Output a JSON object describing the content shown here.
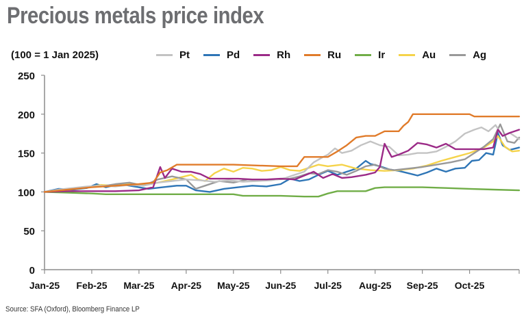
{
  "title": "Precious metals price index",
  "subtitle": "(100 = 1 Jan 2025)",
  "source": "Source: SFA (Oxford), Bloomberg Finance LP",
  "chart_data": {
    "type": "line",
    "title": "Precious metals price index",
    "subtitle": "(100 = 1 Jan 2025)",
    "xlabel": "",
    "ylabel": "",
    "ylim": [
      0,
      250
    ],
    "yticks": [
      0,
      50,
      100,
      150,
      200,
      250
    ],
    "xlim": [
      0,
      10.05
    ],
    "xticks": [
      0,
      1,
      2,
      3,
      4,
      5,
      6,
      7,
      8,
      9,
      10.05
    ],
    "xtick_labels": [
      "Jan-25",
      "Feb-25",
      "Mar-25",
      "Apr-25",
      "May-25",
      "Jun-25",
      "Jul-25",
      "Aug-25",
      "Sep-25",
      "Oct-25",
      ""
    ],
    "grid": false,
    "legend_position": "top",
    "series": [
      {
        "name": "Pt",
        "color": "#c3c3c3",
        "x": [
          0,
          0.3,
          0.6,
          0.9,
          1.2,
          1.5,
          1.8,
          2.1,
          2.4,
          2.7,
          3.0,
          3.3,
          3.6,
          3.9,
          4.2,
          4.5,
          4.8,
          5.1,
          5.3,
          5.5,
          5.7,
          5.9,
          6.0,
          6.15,
          6.3,
          6.5,
          6.7,
          6.9,
          7.1,
          7.3,
          7.5,
          7.7,
          7.9,
          8.1,
          8.3,
          8.5,
          8.7,
          8.9,
          9.1,
          9.25,
          9.4,
          9.55,
          9.7,
          9.85,
          10.05
        ],
        "y": [
          100,
          103,
          105,
          107,
          108,
          107,
          109,
          108,
          112,
          114,
          116,
          115,
          113,
          115,
          113,
          114,
          115,
          118,
          122,
          126,
          138,
          145,
          148,
          156,
          150,
          153,
          160,
          165,
          160,
          158,
          147,
          148,
          150,
          150,
          152,
          158,
          165,
          175,
          180,
          183,
          178,
          186,
          172,
          176,
          168
        ]
      },
      {
        "name": "Pd",
        "color": "#2e75b6",
        "x": [
          0,
          0.3,
          0.6,
          0.9,
          1.1,
          1.3,
          1.6,
          1.9,
          2.2,
          2.5,
          2.8,
          3.0,
          3.2,
          3.5,
          3.8,
          4.1,
          4.4,
          4.7,
          5.0,
          5.2,
          5.4,
          5.6,
          5.8,
          6.0,
          6.2,
          6.4,
          6.6,
          6.8,
          6.9,
          7.1,
          7.3,
          7.5,
          7.7,
          7.9,
          8.1,
          8.3,
          8.5,
          8.7,
          8.9,
          9.05,
          9.2,
          9.35,
          9.5,
          9.6,
          9.7,
          9.85,
          10.05
        ],
        "y": [
          100,
          104,
          103,
          105,
          110,
          106,
          110,
          107,
          104,
          106,
          108,
          108,
          102,
          100,
          104,
          106,
          108,
          107,
          110,
          117,
          114,
          116,
          122,
          127,
          122,
          126,
          130,
          140,
          136,
          133,
          129,
          127,
          124,
          121,
          125,
          130,
          126,
          130,
          131,
          140,
          141,
          150,
          148,
          176,
          160,
          154,
          157
        ]
      },
      {
        "name": "Rh",
        "color": "#9b2a87",
        "x": [
          0,
          0.5,
          1.0,
          1.5,
          2.0,
          2.3,
          2.45,
          2.55,
          2.7,
          2.9,
          3.1,
          3.3,
          3.5,
          3.8,
          4.1,
          4.4,
          4.7,
          5.0,
          5.3,
          5.5,
          5.7,
          5.9,
          6.1,
          6.3,
          6.5,
          6.8,
          7.0,
          7.1,
          7.2,
          7.35,
          7.5,
          7.7,
          7.9,
          8.1,
          8.3,
          8.5,
          8.7,
          8.9,
          9.1,
          9.3,
          9.5,
          9.6,
          9.7,
          9.85,
          10.05
        ],
        "y": [
          100,
          101,
          101,
          101,
          102,
          106,
          132,
          118,
          130,
          126,
          126,
          123,
          117,
          117,
          117,
          116,
          116,
          117,
          116,
          121,
          126,
          118,
          123,
          118,
          119,
          122,
          125,
          132,
          162,
          145,
          148,
          153,
          163,
          161,
          157,
          162,
          155,
          155,
          155,
          155,
          157,
          180,
          172,
          176,
          180
        ]
      },
      {
        "name": "Ru",
        "color": "#e07b2a",
        "x": [
          0,
          0.5,
          1.0,
          1.5,
          2.0,
          2.3,
          2.45,
          2.6,
          2.8,
          3.0,
          4.0,
          4.5,
          5.0,
          5.2,
          5.35,
          5.5,
          6.0,
          6.2,
          6.4,
          6.6,
          6.8,
          7.0,
          7.2,
          7.5,
          7.6,
          7.7,
          7.8,
          8.0,
          9.0,
          9.1,
          9.2,
          10.05
        ],
        "y": [
          100,
          103,
          106,
          108,
          110,
          112,
          125,
          128,
          135,
          135,
          135,
          134,
          133,
          133,
          133,
          145,
          145,
          152,
          160,
          170,
          172,
          172,
          178,
          178,
          185,
          190,
          200,
          200,
          200,
          197,
          197,
          197
        ]
      },
      {
        "name": "Ir",
        "color": "#70ad47",
        "x": [
          0,
          0.5,
          1.0,
          1.3,
          2.0,
          3.0,
          4.0,
          4.2,
          5.0,
          5.5,
          5.8,
          6.0,
          6.2,
          6.8,
          7.0,
          7.2,
          8.0,
          8.5,
          9.0,
          9.5,
          10.05
        ],
        "y": [
          100,
          99,
          98,
          97,
          97,
          97,
          97,
          95,
          95,
          94,
          94,
          98,
          101,
          101,
          105,
          106,
          106,
          105,
          104,
          103,
          102
        ]
      },
      {
        "name": "Au",
        "color": "#f5d34a",
        "x": [
          0,
          0.3,
          0.6,
          0.9,
          1.2,
          1.5,
          1.8,
          2.1,
          2.4,
          2.7,
          2.9,
          3.1,
          3.25,
          3.4,
          3.6,
          3.8,
          4.0,
          4.2,
          4.4,
          4.6,
          4.8,
          5.0,
          5.2,
          5.4,
          5.6,
          5.8,
          6.0,
          6.3,
          6.6,
          6.9,
          7.2,
          7.5,
          7.8,
          8.1,
          8.4,
          8.7,
          9.0,
          9.3,
          9.5,
          9.6,
          9.75,
          9.9,
          10.05
        ],
        "y": [
          100,
          102,
          104,
          106,
          109,
          108,
          110,
          109,
          112,
          116,
          119,
          122,
          116,
          114,
          124,
          130,
          126,
          131,
          130,
          127,
          128,
          132,
          128,
          127,
          131,
          135,
          133,
          135,
          130,
          128,
          127,
          128,
          130,
          134,
          140,
          145,
          150,
          157,
          165,
          172,
          158,
          152,
          153
        ]
      },
      {
        "name": "Ag",
        "color": "#999999",
        "x": [
          0,
          0.3,
          0.6,
          0.9,
          1.2,
          1.5,
          1.8,
          2.1,
          2.4,
          2.7,
          3.0,
          3.2,
          3.4,
          3.7,
          4.0,
          4.3,
          4.6,
          4.9,
          5.2,
          5.4,
          5.6,
          5.8,
          6.0,
          6.2,
          6.4,
          6.6,
          6.8,
          7.0,
          7.2,
          7.4,
          7.7,
          8.0,
          8.3,
          8.6,
          8.9,
          9.1,
          9.3,
          9.5,
          9.65,
          9.8,
          9.95,
          10.05
        ],
        "y": [
          100,
          103,
          104,
          106,
          107,
          110,
          112,
          108,
          116,
          120,
          116,
          104,
          108,
          114,
          112,
          116,
          115,
          116,
          117,
          120,
          124,
          123,
          128,
          126,
          122,
          127,
          133,
          135,
          130,
          128,
          130,
          132,
          135,
          138,
          142,
          150,
          158,
          168,
          187,
          165,
          163,
          170
        ]
      }
    ]
  }
}
